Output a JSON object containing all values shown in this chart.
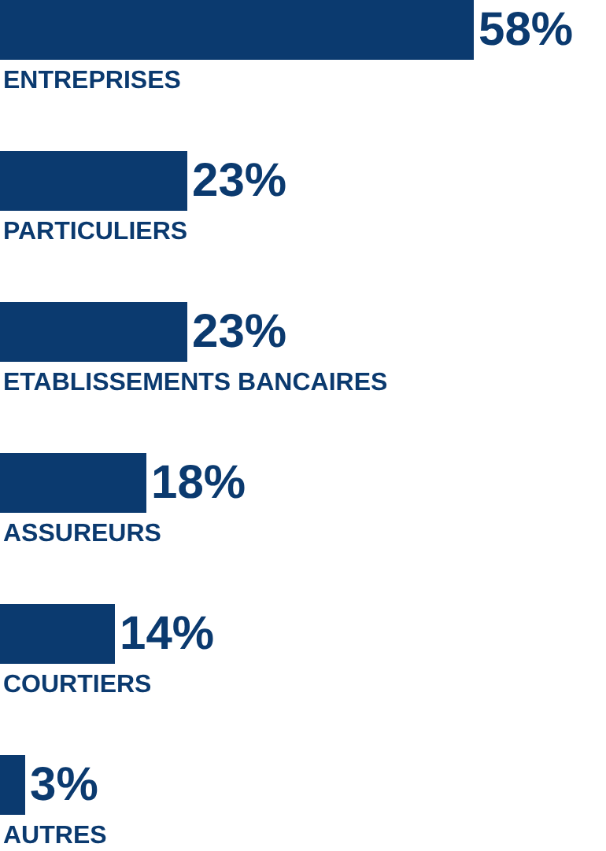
{
  "chart_data": {
    "type": "bar",
    "orientation": "horizontal",
    "categories": [
      "ENTREPRISES",
      "PARTICULIERS",
      "ETABLISSEMENTS BANCAIRES",
      "ASSUREURS",
      "COURTIERS",
      "AUTRES"
    ],
    "values": [
      58,
      23,
      23,
      18,
      14,
      3
    ],
    "value_labels": [
      "58%",
      "23%",
      "23%",
      "18%",
      "14%",
      "3%"
    ],
    "color": "#0b3a6f",
    "legend": false
  }
}
